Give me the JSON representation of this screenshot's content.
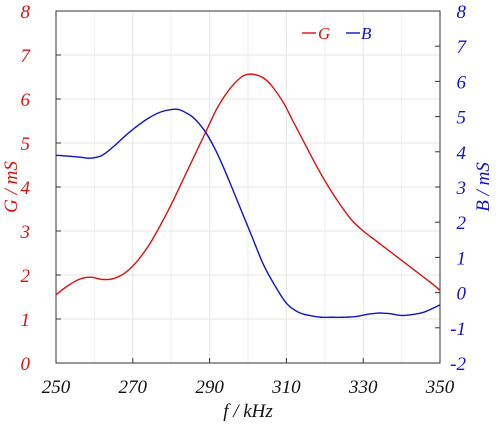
{
  "chart_data": {
    "type": "line",
    "title": "",
    "xlabel": "f / kHz",
    "ylabel_left": "G / mS",
    "ylabel_right": "B / mS",
    "xlim": [
      250,
      350
    ],
    "ylim_left": [
      0,
      8
    ],
    "ylim_right": [
      -2,
      8
    ],
    "x_ticks": [
      "250",
      "270",
      "290",
      "310",
      "330",
      "350"
    ],
    "y_ticks_left": [
      "0",
      "1",
      "2",
      "3",
      "4",
      "5",
      "6",
      "7",
      "8"
    ],
    "y_ticks_right": [
      "-2",
      "-1",
      "0",
      "1",
      "2",
      "3",
      "4",
      "5",
      "6",
      "7",
      "8"
    ],
    "grid": true,
    "legend_position": "top-right",
    "colors": {
      "G": "#dd1111",
      "B": "#1111cc"
    },
    "series": [
      {
        "name": "G",
        "axis": "left",
        "x": [
          250,
          253,
          256,
          259,
          262,
          265,
          268,
          271,
          274,
          277,
          280,
          283,
          286,
          289,
          292,
          295,
          298,
          300,
          302,
          304,
          306,
          309,
          312,
          315,
          318,
          321,
          324,
          327,
          330,
          333,
          336,
          339,
          342,
          345,
          348,
          350
        ],
        "values": [
          1.55,
          1.75,
          1.9,
          1.95,
          1.9,
          1.92,
          2.05,
          2.3,
          2.65,
          3.1,
          3.6,
          4.15,
          4.7,
          5.25,
          5.8,
          6.2,
          6.48,
          6.56,
          6.55,
          6.48,
          6.32,
          5.95,
          5.45,
          4.95,
          4.45,
          4.0,
          3.6,
          3.25,
          3.0,
          2.8,
          2.6,
          2.4,
          2.2,
          2.0,
          1.8,
          1.65
        ]
      },
      {
        "name": "B",
        "axis": "right",
        "x": [
          250,
          253,
          256,
          259,
          262,
          265,
          268,
          271,
          274,
          277,
          280,
          282,
          284,
          286,
          289,
          292,
          295,
          298,
          301,
          304,
          307,
          310,
          313,
          316,
          319,
          322,
          325,
          328,
          331,
          334,
          337,
          340,
          343,
          346,
          350
        ],
        "values": [
          3.9,
          3.88,
          3.85,
          3.82,
          3.9,
          4.15,
          4.45,
          4.72,
          4.95,
          5.12,
          5.2,
          5.2,
          5.1,
          4.95,
          4.55,
          3.95,
          3.2,
          2.4,
          1.6,
          0.8,
          0.2,
          -0.3,
          -0.55,
          -0.65,
          -0.7,
          -0.7,
          -0.7,
          -0.68,
          -0.62,
          -0.58,
          -0.6,
          -0.65,
          -0.62,
          -0.55,
          -0.35
        ]
      }
    ]
  }
}
